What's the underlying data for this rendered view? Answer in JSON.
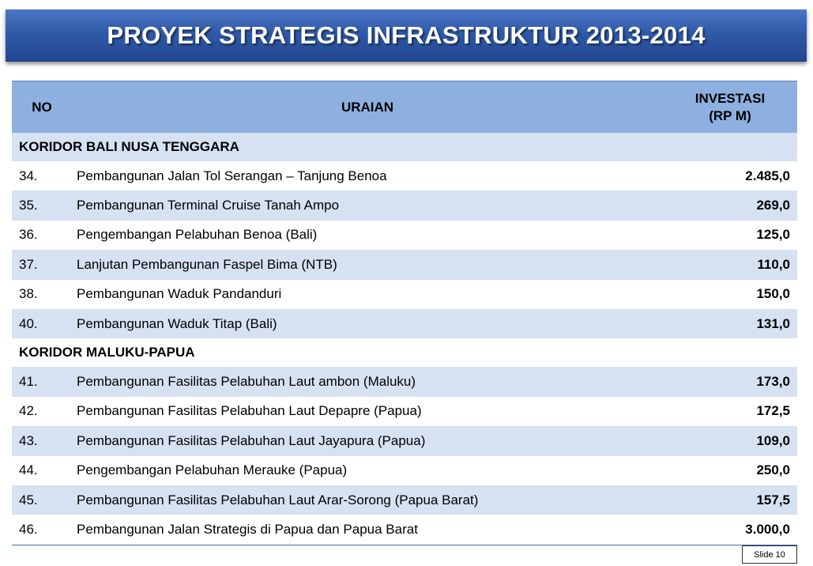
{
  "title": "PROYEK STRATEGIS INFRASTRUKTUR 2013-2014",
  "header": {
    "no": "NO",
    "uraian": "URAIAN",
    "investasi_1": "INVESTASI",
    "investasi_2": "(RP M)"
  },
  "groups": [
    {
      "name": "KORIDOR  BALI NUSA TENGGARA",
      "rows": [
        {
          "no": "34.",
          "uraian": "Pembangunan Jalan Tol Serangan – Tanjung Benoa",
          "investasi": "2.485,0"
        },
        {
          "no": "35.",
          "uraian": "Pembangunan Terminal Cruise Tanah Ampo",
          "investasi": "269,0"
        },
        {
          "no": "36.",
          "uraian": "Pengembangan Pelabuhan Benoa (Bali)",
          "investasi": "125,0"
        },
        {
          "no": "37.",
          "uraian": "Lanjutan Pembangunan Faspel Bima (NTB)",
          "investasi": "110,0"
        },
        {
          "no": "38.",
          "uraian": "Pembangunan Waduk Pandanduri",
          "investasi": "150,0"
        },
        {
          "no": "40.",
          "uraian": "Pembangunan Waduk Titap (Bali)",
          "investasi": "131,0"
        }
      ]
    },
    {
      "name": "KORIDOR  MALUKU-PAPUA",
      "rows": [
        {
          "no": "41.",
          "uraian": "Pembangunan Fasilitas Pelabuhan Laut ambon (Maluku)",
          "investasi": "173,0"
        },
        {
          "no": "42.",
          "uraian": "Pembangunan Fasilitas Pelabuhan Laut Depapre (Papua)",
          "investasi": "172,5"
        },
        {
          "no": "43.",
          "uraian": "Pembangunan Fasilitas Pelabuhan Laut Jayapura (Papua)",
          "investasi": "109,0"
        },
        {
          "no": "44.",
          "uraian": "Pengembangan Pelabuhan Merauke (Papua)",
          "investasi": "250,0"
        },
        {
          "no": "45.",
          "uraian": "Pembangunan Fasilitas Pelabuhan Laut Arar-Sorong (Papua Barat)",
          "investasi": "157,5"
        },
        {
          "no": "46.",
          "uraian": "Pembangunan Jalan Strategis di Papua dan Papua Barat",
          "investasi": "3.000,0"
        }
      ]
    }
  ],
  "slide_label": "Slide 10",
  "colors": {
    "banner": "#2f5aa8",
    "header": "#8db0e0",
    "band": "#d6e1f2"
  }
}
